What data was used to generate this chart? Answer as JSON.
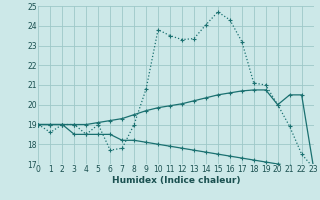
{
  "xlabel": "Humidex (Indice chaleur)",
  "xlim": [
    0,
    23
  ],
  "ylim": [
    17,
    25
  ],
  "yticks": [
    17,
    18,
    19,
    20,
    21,
    22,
    23,
    24,
    25
  ],
  "xticks": [
    0,
    1,
    2,
    3,
    4,
    5,
    6,
    7,
    8,
    9,
    10,
    11,
    12,
    13,
    14,
    15,
    16,
    17,
    18,
    19,
    20,
    21,
    22,
    23
  ],
  "bg_color": "#cce8e8",
  "grid_color": "#9ec8c8",
  "line_color": "#1a7070",
  "line1_x": [
    0,
    1,
    2,
    3,
    4,
    5,
    6,
    7,
    8,
    9,
    10,
    11,
    12,
    13,
    14,
    15,
    16,
    17,
    18,
    19,
    20,
    21,
    22,
    23
  ],
  "line1_y": [
    19.0,
    18.6,
    19.0,
    19.0,
    18.5,
    19.0,
    17.7,
    17.8,
    19.0,
    20.8,
    23.8,
    23.5,
    23.3,
    23.35,
    24.05,
    24.7,
    24.3,
    23.2,
    21.1,
    21.0,
    20.0,
    18.9,
    17.5,
    16.8
  ],
  "line2_x": [
    0,
    1,
    2,
    3,
    4,
    5,
    6,
    7,
    8,
    9,
    10,
    11,
    12,
    13,
    14,
    15,
    16,
    17,
    18,
    19,
    20,
    21,
    22,
    23
  ],
  "line2_y": [
    19.0,
    19.0,
    19.0,
    19.0,
    19.0,
    19.1,
    19.2,
    19.3,
    19.5,
    19.7,
    19.85,
    19.95,
    20.05,
    20.2,
    20.35,
    20.5,
    20.6,
    20.7,
    20.75,
    20.75,
    20.0,
    20.5,
    20.5,
    16.8
  ],
  "line3_x": [
    0,
    1,
    2,
    3,
    4,
    5,
    6,
    7,
    8,
    9,
    10,
    11,
    12,
    13,
    14,
    15,
    16,
    17,
    18,
    19,
    20,
    21,
    22,
    23
  ],
  "line3_y": [
    19.0,
    19.0,
    19.0,
    18.5,
    18.5,
    18.5,
    18.5,
    18.2,
    18.2,
    18.1,
    18.0,
    17.9,
    17.8,
    17.7,
    17.6,
    17.5,
    17.4,
    17.3,
    17.2,
    17.1,
    17.0,
    16.9,
    16.8,
    16.7
  ]
}
